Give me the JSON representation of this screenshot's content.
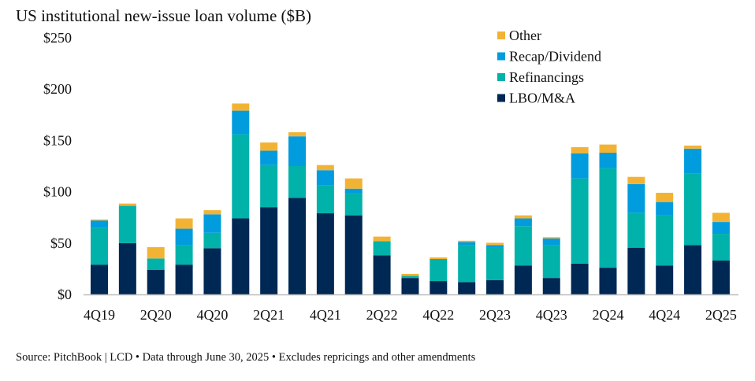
{
  "chart_data": {
    "type": "bar",
    "stacked": true,
    "title": "US institutional new-issue loan volume ($B)",
    "xlabel": "",
    "ylabel": "",
    "ylim": [
      0,
      250
    ],
    "yticks": [
      0,
      50,
      100,
      150,
      200,
      250
    ],
    "ytick_labels": [
      "$0",
      "$50",
      "$100",
      "$150",
      "$200",
      "$250"
    ],
    "categories": [
      "4Q19",
      "1Q20",
      "2Q20",
      "3Q20",
      "4Q20",
      "1Q21",
      "2Q21",
      "3Q21",
      "4Q21",
      "1Q22",
      "2Q22",
      "3Q22",
      "4Q22",
      "1Q23",
      "2Q23",
      "3Q23",
      "4Q23",
      "1Q24",
      "2Q24",
      "3Q24",
      "4Q24",
      "1Q25",
      "2Q25"
    ],
    "xtick_labels": [
      "4Q19",
      "2Q20",
      "4Q20",
      "2Q21",
      "4Q21",
      "2Q22",
      "4Q22",
      "2Q23",
      "4Q23",
      "2Q24",
      "4Q24",
      "2Q25"
    ],
    "legend_position": "top-right",
    "series": [
      {
        "name": "LBO/M&A",
        "color": "#002855",
        "values": [
          29,
          50,
          24,
          29,
          45,
          74,
          85,
          94,
          79,
          77,
          38,
          16,
          13,
          12,
          14,
          28,
          16,
          30,
          26,
          45.5,
          28,
          48,
          33
        ]
      },
      {
        "name": "Refinancings",
        "color": "#00b2a9",
        "values": [
          36,
          36,
          11,
          19,
          15,
          82,
          41,
          31,
          27,
          21.5,
          13.5,
          2,
          21.5,
          36,
          32,
          38.5,
          32,
          83,
          97,
          34,
          49,
          70,
          26
        ]
      },
      {
        "name": "Recap/Dividend",
        "color": "#009cde",
        "values": [
          7,
          0.5,
          0,
          16,
          18,
          23,
          14,
          29,
          15,
          4.5,
          0.5,
          0,
          0,
          3,
          2,
          7.5,
          6.5,
          24.5,
          15,
          28,
          13,
          24,
          11.5
        ]
      },
      {
        "name": "Other",
        "color": "#f2b335",
        "values": [
          1,
          2,
          11,
          10,
          4,
          7,
          8,
          4,
          5,
          10,
          4.3,
          2,
          1.5,
          1.3,
          2.3,
          3,
          1.3,
          6,
          8,
          7,
          9,
          3,
          9
        ]
      }
    ]
  },
  "source": "Source: PitchBook | LCD • Data through June 30, 2025 • Excludes repricings and other amendments"
}
